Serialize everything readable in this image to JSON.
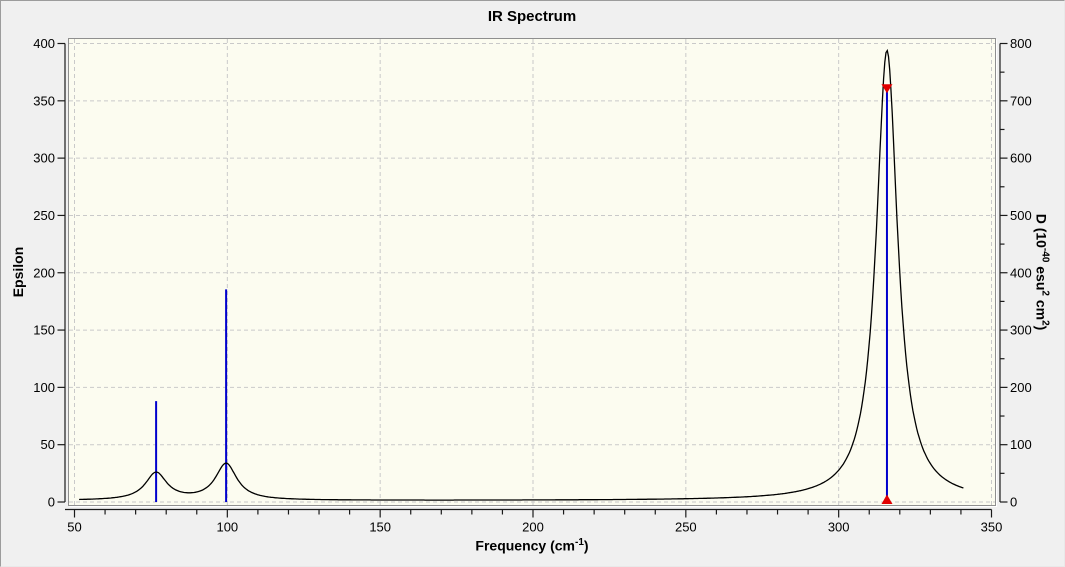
{
  "title": "IR Spectrum",
  "axis_labels": {
    "left": "Epsilon",
    "x": {
      "pre": "Frequency (cm",
      "sup": "-1",
      "post": ")"
    },
    "right": {
      "pre": "D (10",
      "sup1": "-40",
      "mid1": " esu",
      "sup2": "2",
      "mid2": " cm",
      "sup3": "2",
      "post": ")"
    }
  },
  "chart_data": {
    "type": "line",
    "title": "IR Spectrum",
    "x_axis": {
      "label": "Frequency (cm^-1)",
      "min": 50,
      "max": 350,
      "major_tick": 50,
      "minor_tick": 10,
      "tick_labels": [
        50,
        100,
        150,
        200,
        250,
        300,
        350
      ]
    },
    "left_axis": {
      "label": "Epsilon",
      "min": 0,
      "max": 400,
      "major_tick": 50,
      "tick_labels": [
        0,
        50,
        100,
        150,
        200,
        250,
        300,
        350,
        400
      ]
    },
    "right_axis": {
      "label": "D (10^-40 esu^2 cm^2)",
      "min": 0,
      "max": 800,
      "major_tick": 100,
      "minor_tick": 50,
      "tick_labels": [
        0,
        100,
        200,
        300,
        400,
        500,
        600,
        700,
        800
      ]
    },
    "grid": {
      "show": true,
      "style": "dashed"
    },
    "peaks": [
      {
        "frequency_cm1": 76.7,
        "epsilon_curve_max": 25,
        "dipole_strength": 176,
        "selected": false
      },
      {
        "frequency_cm1": 99.6,
        "epsilon_curve_max": 33,
        "dipole_strength": 371,
        "selected": false
      },
      {
        "frequency_cm1": 315.8,
        "epsilon_curve_max": 394,
        "dipole_strength": 722,
        "selected": true
      }
    ],
    "broadening": {
      "shape": "lorentzian",
      "hwhm_cm1": 4.25,
      "baseline_epsilon": 1.2
    },
    "curve_range_cm1": [
      51.5,
      340.8
    ],
    "colors": {
      "window_background": "#F0F0F0",
      "plot_background": "#FCFCF0",
      "grid": "#C9C9C9",
      "curve": "#000000",
      "stick": "#0000CD",
      "selected_marker": "#E10000",
      "axis": "#1A1A1A"
    }
  }
}
